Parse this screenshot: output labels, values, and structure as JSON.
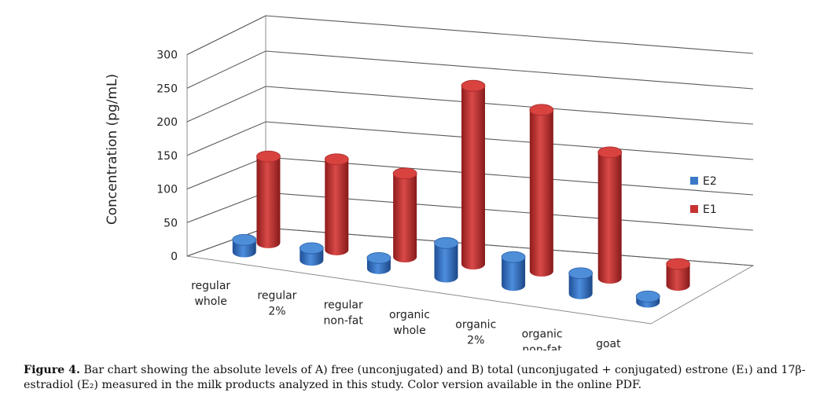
{
  "chart_data": {
    "type": "bar",
    "style": "3d-cylinder",
    "categories": [
      [
        "regular",
        "whole"
      ],
      [
        "regular",
        "2%"
      ],
      [
        "regular",
        "non-fat"
      ],
      [
        "organic",
        "whole"
      ],
      [
        "organic",
        "2%"
      ],
      [
        "organic",
        "non-fat"
      ],
      [
        "goat"
      ]
    ],
    "series": [
      {
        "name": "E2",
        "color": "#3c78c8",
        "values": [
          17,
          17,
          15,
          48,
          40,
          29,
          8
        ]
      },
      {
        "name": "E1",
        "color": "#c83232",
        "values": [
          122,
          128,
          118,
          252,
          228,
          178,
          30
        ]
      }
    ],
    "ylabel": "Concentration (pg/mL)",
    "ylim": [
      0,
      300
    ],
    "yticks": [
      0,
      50,
      100,
      150,
      200,
      250,
      300
    ],
    "grid": true,
    "legend": "right"
  },
  "caption": {
    "label": "Figure 4.",
    "text": " Bar chart showing the absolute levels of A) free (unconjugated) and B) total (unconjugated + conjugated) estrone (E₁) and 17β-estradiol (E₂) measured in the milk products analyzed in this study. Color version available in the online PDF."
  }
}
